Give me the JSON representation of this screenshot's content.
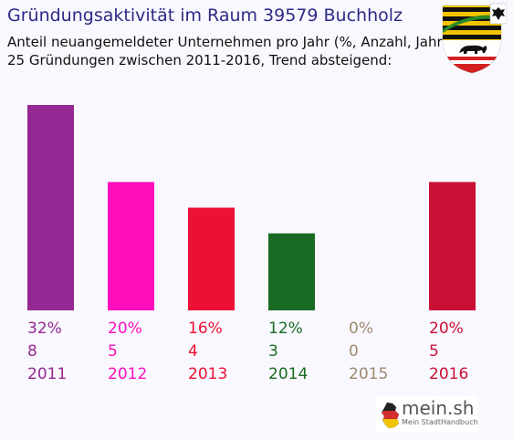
{
  "header": {
    "title": "Gründungsaktivität im Raum 39579 Buchholz",
    "subtitle_line1": "Anteil neuangemeldeter Unternehmen pro Jahr (%, Anzahl, Jahr)",
    "subtitle_line2": "25 Gründungen zwischen 2011-2016, Trend absteigend:"
  },
  "logo": {
    "name": "mein.sh",
    "tagline": "Mein StadtHandbuch"
  },
  "coat_of_arms": "saxony-anhalt-coat-of-arms",
  "chart_data": {
    "type": "bar",
    "categories": [
      "2011",
      "2012",
      "2013",
      "2014",
      "2015",
      "2016"
    ],
    "values": [
      8,
      5,
      4,
      3,
      0,
      5
    ],
    "percent_labels": [
      "32%",
      "20%",
      "16%",
      "12%",
      "0%",
      "20%"
    ],
    "count_labels": [
      "8",
      "5",
      "4",
      "3",
      "0",
      "5"
    ],
    "colors": [
      "#952892",
      "#ff0fbb",
      "#ec1034",
      "#196b23",
      "#a0896f",
      "#cb1036"
    ],
    "ylim": [
      0,
      8
    ],
    "grid": false,
    "legend": "none"
  }
}
